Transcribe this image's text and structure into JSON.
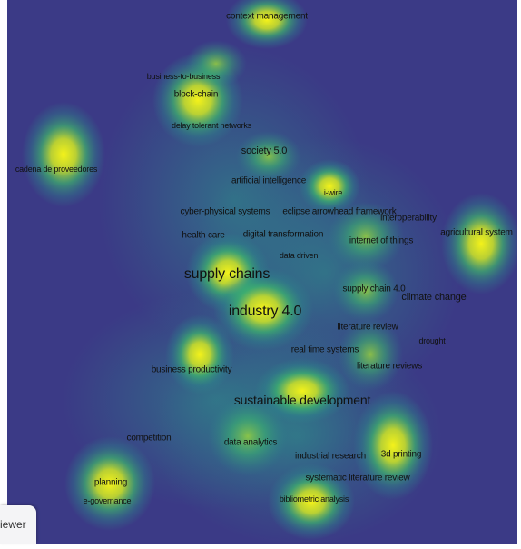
{
  "map": {
    "terms": [
      {
        "id": "context-management",
        "label": "context management",
        "size": "s"
      },
      {
        "id": "business-to-business",
        "label": "business-to-business",
        "size": "xs"
      },
      {
        "id": "block-chain",
        "label": "block-chain",
        "size": "s"
      },
      {
        "id": "delay-tolerant-networks",
        "label": "delay tolerant networks",
        "size": "xs"
      },
      {
        "id": "society-5-0",
        "label": "society 5.0",
        "size": "m"
      },
      {
        "id": "cadena-de-proveedores",
        "label": "cadena de proveedores",
        "size": "xs"
      },
      {
        "id": "artificial-intelligence",
        "label": "artificial intelligence",
        "size": "s"
      },
      {
        "id": "i-wire",
        "label": "i-wire",
        "size": "xs"
      },
      {
        "id": "cyber-physical-systems",
        "label": "cyber-physical systems",
        "size": "s"
      },
      {
        "id": "eclipse-arrowhead-framework",
        "label": "eclipse arrowhead framework",
        "size": "s"
      },
      {
        "id": "interoperability",
        "label": "interoperability",
        "size": "s"
      },
      {
        "id": "agricultural-system",
        "label": "agricultural system",
        "size": "s"
      },
      {
        "id": "health-care",
        "label": "health care",
        "size": "s"
      },
      {
        "id": "digital-transformation",
        "label": "digital transformation",
        "size": "s"
      },
      {
        "id": "internet-of-things",
        "label": "internet of things",
        "size": "s"
      },
      {
        "id": "data-driven",
        "label": "data driven",
        "size": "xs"
      },
      {
        "id": "supply-chains",
        "label": "supply chains",
        "size": "xl"
      },
      {
        "id": "supply-chain-4-0",
        "label": "supply chain 4.0",
        "size": "s"
      },
      {
        "id": "climate-change",
        "label": "climate change",
        "size": "m"
      },
      {
        "id": "industry-4-0",
        "label": "industry 4.0",
        "size": "xl"
      },
      {
        "id": "literature-review",
        "label": "literature review",
        "size": "s"
      },
      {
        "id": "drought",
        "label": "drought",
        "size": "xs"
      },
      {
        "id": "real-time-systems",
        "label": "real time systems",
        "size": "s"
      },
      {
        "id": "literature-reviews",
        "label": "literature reviews",
        "size": "s"
      },
      {
        "id": "business-productivity",
        "label": "business productivity",
        "size": "s"
      },
      {
        "id": "sustainable-development",
        "label": "sustainable development",
        "size": "l"
      },
      {
        "id": "competition",
        "label": "competition",
        "size": "s"
      },
      {
        "id": "data-analytics",
        "label": "data analytics",
        "size": "s"
      },
      {
        "id": "industrial-research",
        "label": "industrial research",
        "size": "s"
      },
      {
        "id": "3d-printing",
        "label": "3d printing",
        "size": "s"
      },
      {
        "id": "planning",
        "label": "planning",
        "size": "s"
      },
      {
        "id": "systematic-literature-review",
        "label": "systematic literature review",
        "size": "s"
      },
      {
        "id": "e-governance",
        "label": "e-governance",
        "size": "xs"
      },
      {
        "id": "bibliometric-analysis",
        "label": "bibliometric analysis",
        "size": "xs"
      }
    ],
    "colors": {
      "background": "#3b3a86",
      "low": "#2c8a8a",
      "mid": "#3fbf6a",
      "high": "#f4f21a"
    }
  },
  "viewer_tab": {
    "label": "iewer"
  }
}
